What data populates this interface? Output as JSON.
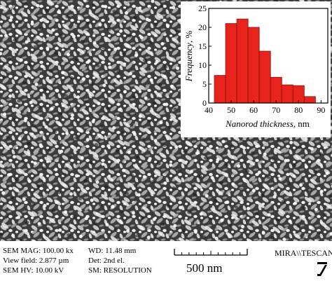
{
  "image": {
    "caption_lines": [
      "SEM MAG: 100.00 kx",
      "View field: 2.877 µm",
      "SEM HV: 10.00 kV"
    ],
    "detector_lines": [
      "WD: 11.48 mm",
      "Det: 2nd el.",
      "SM: RESOLUTION"
    ],
    "scale_bar_label": "500 nm",
    "brand": "MIRA\\\\TESCAN",
    "colors": {
      "bar_fill": "#e8231c",
      "bar_stroke": "#8a0f0a",
      "sem_background": "#3a3a3a"
    }
  },
  "chart_data": {
    "type": "bar",
    "categories": [
      "45",
      "50",
      "55",
      "60",
      "65",
      "70",
      "75",
      "80",
      "85"
    ],
    "values": [
      7.3,
      21,
      22.2,
      20,
      13.7,
      6.8,
      4.8,
      4.6,
      1.7
    ],
    "xlabel_italic": "Nanorod thickness",
    "xlabel_unit": ", nm",
    "ylabel_italic": "Frequency",
    "ylabel_unit": ", %",
    "xticks": [
      "40",
      "50",
      "60",
      "70",
      "80",
      "90"
    ],
    "yticks": [
      "0",
      "5",
      "10",
      "15",
      "20",
      "25"
    ],
    "xlim": [
      40,
      93
    ],
    "ylim": [
      0,
      25
    ],
    "bin_width": 5,
    "grid": false
  }
}
